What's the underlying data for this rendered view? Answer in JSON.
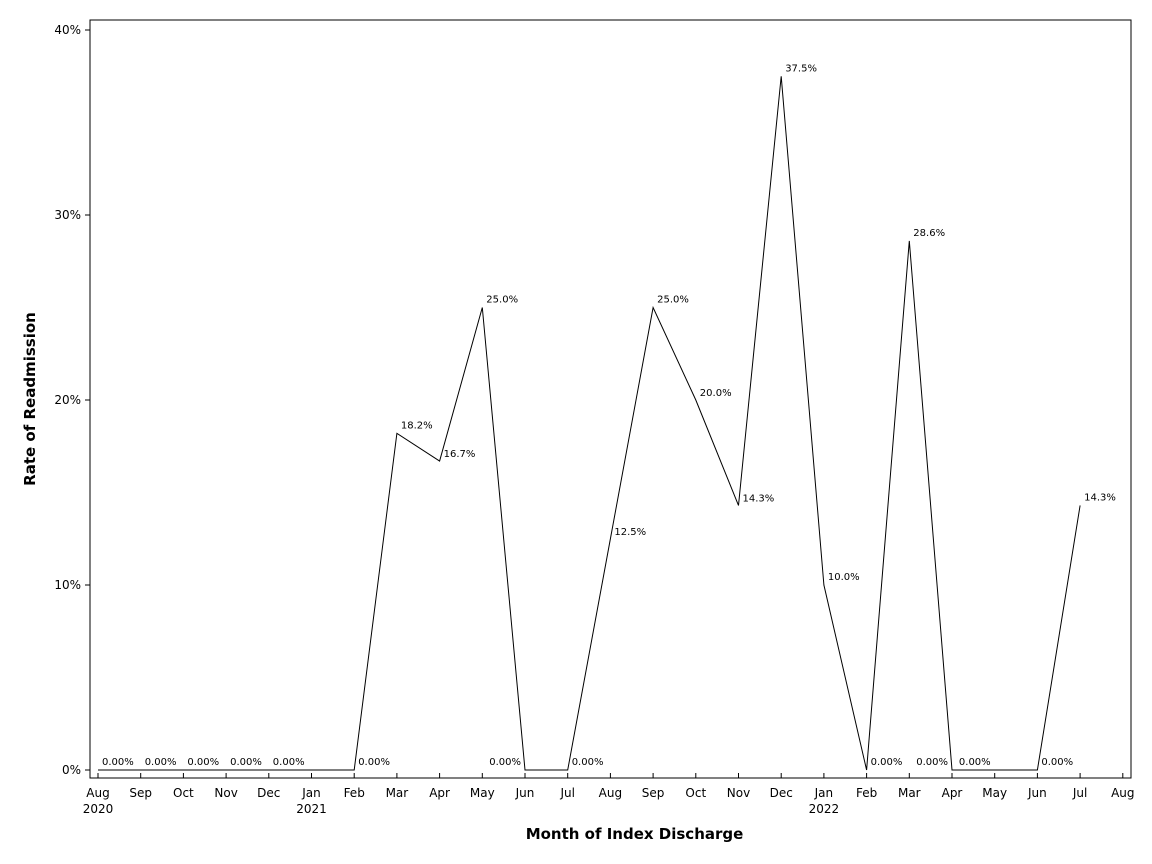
{
  "chart_data": {
    "type": "line",
    "xlabel": "Month of Index Discharge",
    "ylabel": "Rate of Readmission",
    "ylim": [
      0,
      40
    ],
    "grid": false,
    "legend": "none",
    "series_color": "#000000",
    "y_ticks": [
      {
        "value": 0,
        "label": "0%"
      },
      {
        "value": 10,
        "label": "10%"
      },
      {
        "value": 20,
        "label": "20%"
      },
      {
        "value": 30,
        "label": "30%"
      },
      {
        "value": 40,
        "label": "40%"
      }
    ],
    "x_ticks": [
      {
        "month": "Aug",
        "year": "2020"
      },
      {
        "month": "Sep",
        "year": ""
      },
      {
        "month": "Oct",
        "year": ""
      },
      {
        "month": "Nov",
        "year": ""
      },
      {
        "month": "Dec",
        "year": ""
      },
      {
        "month": "Jan",
        "year": "2021"
      },
      {
        "month": "Feb",
        "year": ""
      },
      {
        "month": "Mar",
        "year": ""
      },
      {
        "month": "Apr",
        "year": ""
      },
      {
        "month": "May",
        "year": ""
      },
      {
        "month": "Jun",
        "year": ""
      },
      {
        "month": "Jul",
        "year": ""
      },
      {
        "month": "Aug",
        "year": ""
      },
      {
        "month": "Sep",
        "year": ""
      },
      {
        "month": "Oct",
        "year": ""
      },
      {
        "month": "Nov",
        "year": ""
      },
      {
        "month": "Dec",
        "year": ""
      },
      {
        "month": "Jan",
        "year": "2022"
      },
      {
        "month": "Feb",
        "year": ""
      },
      {
        "month": "Mar",
        "year": ""
      },
      {
        "month": "Apr",
        "year": ""
      },
      {
        "month": "May",
        "year": ""
      },
      {
        "month": "Jun",
        "year": ""
      },
      {
        "month": "Jul",
        "year": ""
      },
      {
        "month": "Aug",
        "year": ""
      }
    ],
    "points": [
      {
        "x": "2020-08",
        "y": 0,
        "label": "0.00%",
        "pos": "right-above"
      },
      {
        "x": "2020-09",
        "y": 0,
        "label": "0.00%",
        "pos": "right-above"
      },
      {
        "x": "2020-10",
        "y": 0,
        "label": "0.00%",
        "pos": "right-above"
      },
      {
        "x": "2020-11",
        "y": 0,
        "label": "0.00%",
        "pos": "right-above"
      },
      {
        "x": "2020-12",
        "y": 0,
        "label": "0.00%",
        "pos": "right-above"
      },
      {
        "x": "2021-01",
        "y": 0,
        "label": "",
        "pos": "right-above"
      },
      {
        "x": "2021-02",
        "y": 0,
        "label": "0.00%",
        "pos": "right-above"
      },
      {
        "x": "2021-03",
        "y": 18.2,
        "label": "18.2%",
        "pos": "right-above"
      },
      {
        "x": "2021-04",
        "y": 16.7,
        "label": "16.7%",
        "pos": "right"
      },
      {
        "x": "2021-05",
        "y": 25.0,
        "label": "25.0%",
        "pos": "right-above"
      },
      {
        "x": "2021-06",
        "y": 0,
        "label": "0.00%",
        "pos": "left-above"
      },
      {
        "x": "2021-07",
        "y": 0,
        "label": "0.00%",
        "pos": "right-above"
      },
      {
        "x": "2021-08",
        "y": 12.5,
        "label": "12.5%",
        "pos": "right"
      },
      {
        "x": "2021-09",
        "y": 25.0,
        "label": "25.0%",
        "pos": "right-above"
      },
      {
        "x": "2021-10",
        "y": 20.0,
        "label": "20.0%",
        "pos": "right"
      },
      {
        "x": "2021-11",
        "y": 14.3,
        "label": "14.3%",
        "pos": "right"
      },
      {
        "x": "2021-12",
        "y": 37.5,
        "label": "37.5%",
        "pos": "right-above"
      },
      {
        "x": "2022-01",
        "y": 10.0,
        "label": "10.0%",
        "pos": "right-above"
      },
      {
        "x": "2022-02",
        "y": 0,
        "label": "0.00%",
        "pos": "right-above"
      },
      {
        "x": "2022-03",
        "y": 28.6,
        "label": "28.6%",
        "pos": "right-above"
      },
      {
        "x": "2022-04",
        "y": 0,
        "label": "0.00%",
        "pos": "left-above"
      },
      {
        "x": "2022-05",
        "y": 0,
        "label": "0.00%",
        "pos": "left-above"
      },
      {
        "x": "2022-06",
        "y": 0,
        "label": "0.00%",
        "pos": "right-above"
      },
      {
        "x": "2022-07",
        "y": 14.3,
        "label": "14.3%",
        "pos": "right-above"
      }
    ]
  }
}
